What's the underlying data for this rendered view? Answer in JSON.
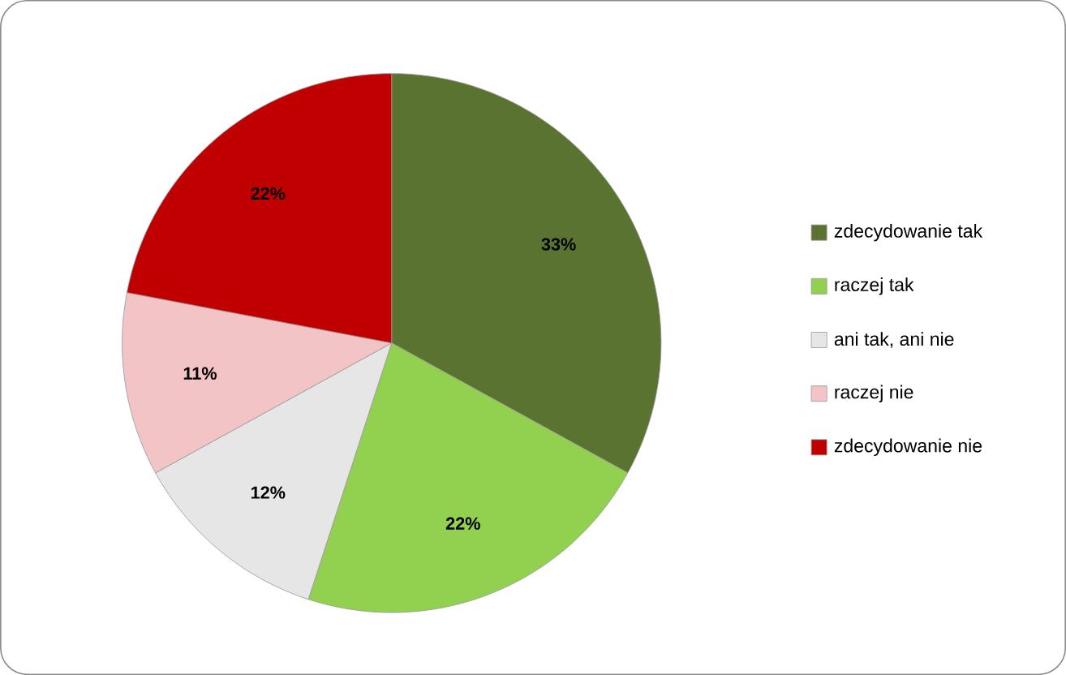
{
  "chart_data": {
    "type": "pie",
    "categories": [
      "zdecydowanie tak",
      "raczej tak",
      "ani tak,  ani nie",
      "raczej nie",
      "zdecydowanie nie"
    ],
    "values": [
      33,
      22,
      12,
      11,
      22
    ],
    "value_labels": [
      "33%",
      "22%",
      "12%",
      "11%",
      "22%"
    ],
    "colors": [
      "#5a7330",
      "#92d050",
      "#e6e6e6",
      "#f2c4c6",
      "#c00000"
    ],
    "legend": "right"
  }
}
